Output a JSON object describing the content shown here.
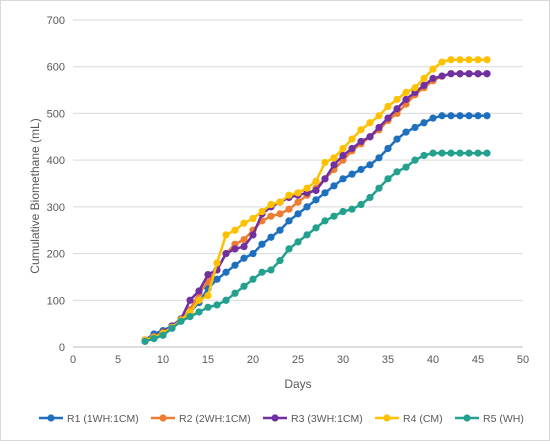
{
  "chart_data": {
    "type": "line",
    "title": "",
    "xlabel": "Days",
    "ylabel": "Cumulative Biomethane  (mL)",
    "xlim": [
      0,
      50
    ],
    "ylim": [
      0,
      700
    ],
    "x_ticks": [
      0,
      5,
      10,
      15,
      20,
      25,
      30,
      35,
      40,
      45,
      50
    ],
    "y_ticks": [
      0,
      100,
      200,
      300,
      400,
      500,
      600,
      700
    ],
    "grid": "horizontal",
    "legend_position": "bottom",
    "x": [
      8,
      9,
      10,
      11,
      12,
      13,
      14,
      15,
      16,
      17,
      18,
      19,
      20,
      21,
      22,
      23,
      24,
      25,
      26,
      27,
      28,
      29,
      30,
      31,
      32,
      33,
      34,
      35,
      36,
      37,
      38,
      39,
      40,
      41,
      42,
      43,
      44,
      45,
      46
    ],
    "series": [
      {
        "name": "R1 (1WH:1CM)",
        "color": "#1f6fbf",
        "values": [
          15,
          28,
          35,
          45,
          60,
          75,
          95,
          125,
          145,
          160,
          175,
          190,
          200,
          220,
          235,
          250,
          270,
          285,
          300,
          315,
          330,
          345,
          360,
          370,
          380,
          390,
          405,
          425,
          445,
          460,
          470,
          480,
          490,
          495,
          495,
          495,
          495,
          495,
          495
        ]
      },
      {
        "name": "R2 (2WH:1CM)",
        "color": "#ed7d31",
        "values": [
          15,
          22,
          32,
          42,
          58,
          80,
          115,
          140,
          165,
          200,
          220,
          230,
          250,
          270,
          280,
          285,
          295,
          310,
          325,
          340,
          360,
          380,
          400,
          420,
          435,
          450,
          465,
          485,
          500,
          520,
          540,
          555,
          570,
          580,
          585,
          585,
          585,
          585,
          585
        ]
      },
      {
        "name": "R3 (3WH:1CM)",
        "color": "#7030a0",
        "values": [
          15,
          20,
          32,
          45,
          60,
          100,
          120,
          155,
          165,
          200,
          210,
          215,
          240,
          285,
          300,
          310,
          320,
          325,
          330,
          335,
          360,
          390,
          410,
          425,
          440,
          450,
          470,
          490,
          510,
          530,
          545,
          560,
          575,
          580,
          585,
          585,
          585,
          585,
          585
        ]
      },
      {
        "name": "R4 (CM)",
        "color": "#ffc000",
        "values": [
          15,
          20,
          30,
          42,
          58,
          75,
          100,
          110,
          180,
          240,
          250,
          265,
          275,
          290,
          305,
          310,
          325,
          330,
          340,
          355,
          395,
          405,
          425,
          445,
          465,
          480,
          495,
          515,
          530,
          545,
          555,
          575,
          595,
          610,
          615,
          615,
          615,
          615,
          615
        ]
      },
      {
        "name": "R5 (WH)",
        "color": "#23a08e",
        "values": [
          12,
          18,
          25,
          40,
          55,
          65,
          75,
          85,
          90,
          100,
          115,
          130,
          145,
          160,
          165,
          185,
          210,
          225,
          240,
          255,
          270,
          280,
          290,
          295,
          305,
          320,
          340,
          360,
          375,
          385,
          400,
          410,
          415,
          415,
          415,
          415,
          415,
          415,
          415
        ]
      }
    ]
  }
}
